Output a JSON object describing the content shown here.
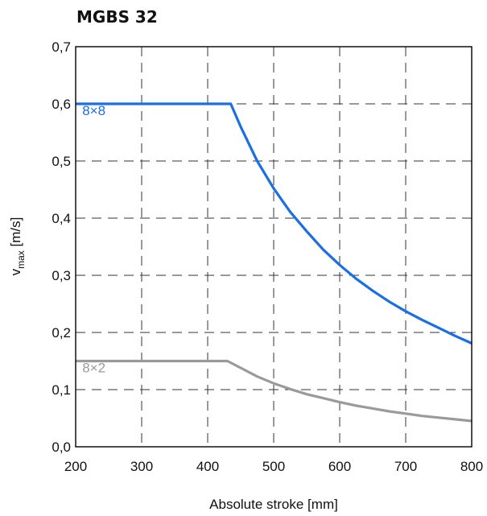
{
  "chart_data": {
    "type": "line",
    "title": "MGBS 32",
    "xlabel": "Absolute stroke [mm]",
    "ylabel": {
      "main": "v",
      "sub": "max",
      "unit": " [m/s]"
    },
    "xlim": [
      200,
      800
    ],
    "ylim": [
      0.0,
      0.7
    ],
    "x_ticks": [
      200,
      300,
      400,
      500,
      600,
      700,
      800
    ],
    "x_tick_labels": [
      "200",
      "300",
      "400",
      "500",
      "600",
      "700",
      "800"
    ],
    "y_ticks": [
      0.0,
      0.1,
      0.2,
      0.3,
      0.4,
      0.5,
      0.6,
      0.7
    ],
    "y_tick_labels": [
      "0,0",
      "0,1",
      "0,2",
      "0,3",
      "0,4",
      "0,5",
      "0,6",
      "0,7"
    ],
    "grid": true,
    "grid_style": "dashed",
    "series": [
      {
        "name": "8×8",
        "color": "#1a6ee6",
        "x": [
          200,
          430,
          435,
          450,
          475,
          500,
          525,
          550,
          575,
          600,
          625,
          650,
          675,
          700,
          725,
          750,
          775,
          800
        ],
        "y": [
          0.6,
          0.6,
          0.6,
          0.56,
          0.5,
          0.452,
          0.411,
          0.377,
          0.345,
          0.318,
          0.294,
          0.273,
          0.254,
          0.237,
          0.222,
          0.208,
          0.194,
          0.181
        ]
      },
      {
        "name": "8×2",
        "color": "#9a9a9a",
        "x": [
          200,
          430,
          450,
          475,
          500,
          525,
          550,
          575,
          600,
          625,
          650,
          675,
          700,
          725,
          750,
          775,
          800
        ],
        "y": [
          0.15,
          0.15,
          0.138,
          0.123,
          0.111,
          0.101,
          0.092,
          0.085,
          0.078,
          0.072,
          0.067,
          0.062,
          0.058,
          0.054,
          0.051,
          0.048,
          0.045
        ]
      }
    ],
    "series_labels": [
      {
        "text": "8×8",
        "x": 210,
        "y": 0.58
      },
      {
        "text": "8×2",
        "x": 210,
        "y": 0.13
      }
    ]
  }
}
